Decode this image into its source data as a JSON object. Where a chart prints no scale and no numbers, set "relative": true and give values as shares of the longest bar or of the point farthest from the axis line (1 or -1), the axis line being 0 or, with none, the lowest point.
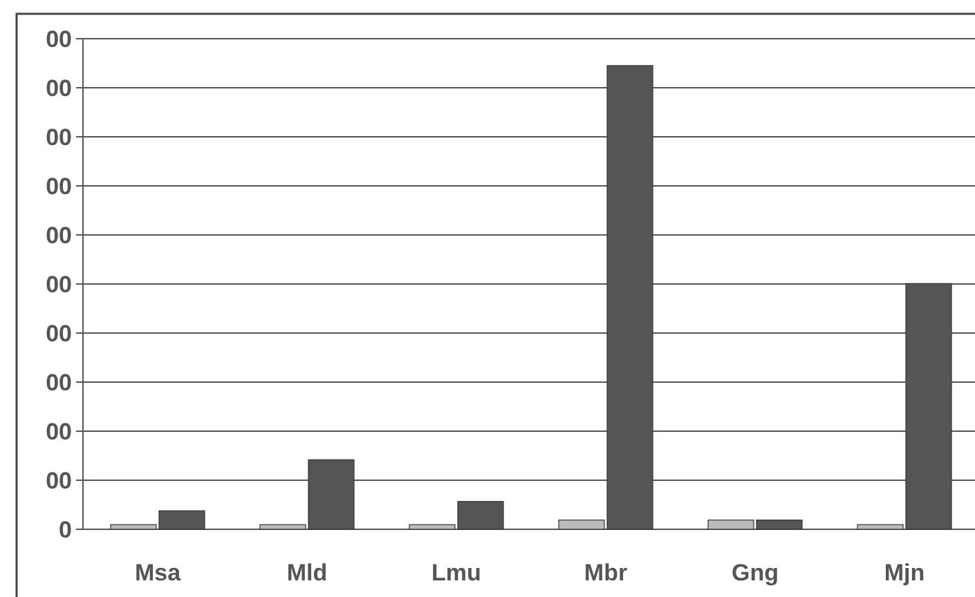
{
  "chart_data": {
    "type": "bar",
    "categories": [
      "Msa",
      "Mld",
      "Lmu",
      "Mbr",
      "Gng",
      "Mjn"
    ],
    "series": [
      {
        "color": "#bbbbbb",
        "values": [
          0.01,
          0.01,
          0.01,
          0.02,
          0.02,
          0.01
        ]
      },
      {
        "color": "#555555",
        "values": [
          0.04,
          0.15,
          0.06,
          1,
          0.02,
          0.53
        ]
      }
    ],
    "relative": true,
    "annotations": [
      "0",
      "00",
      "00",
      "00",
      "00",
      "00",
      "00",
      "00",
      "00",
      "00",
      "00"
    ],
    "grid": "y"
  }
}
